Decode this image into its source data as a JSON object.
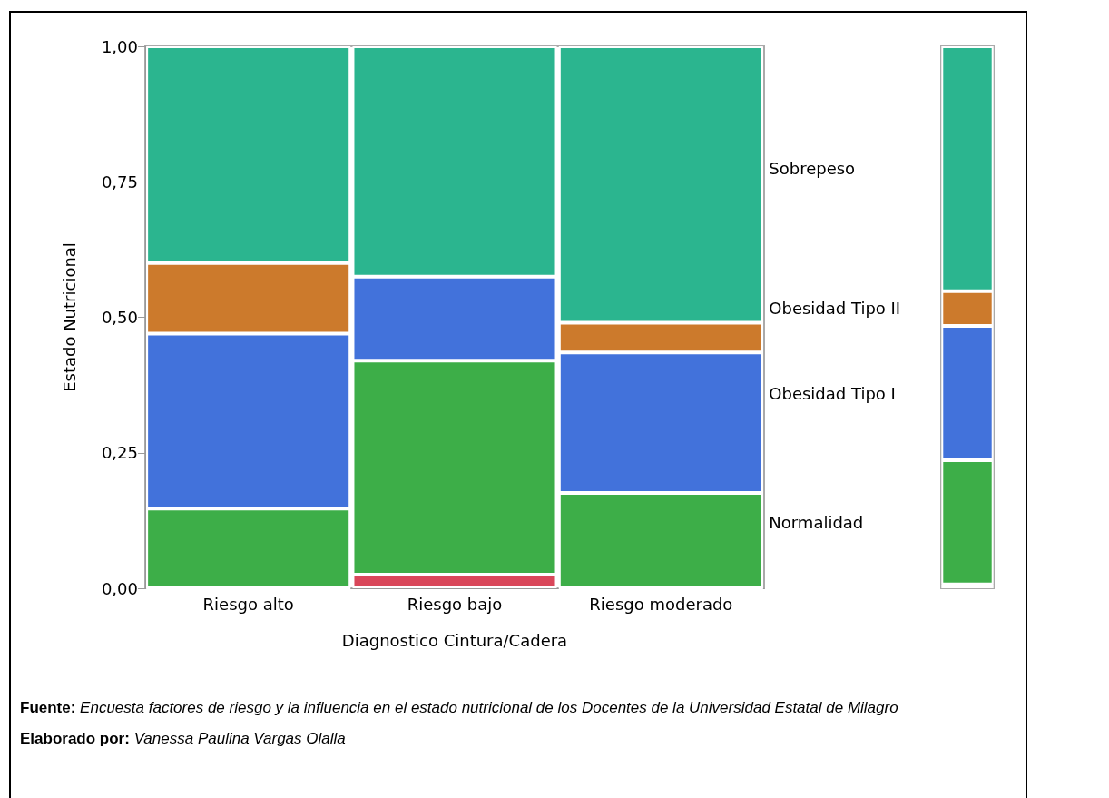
{
  "chart_data": {
    "type": "bar",
    "stacked": true,
    "xlabel": "Diagnostico Cintura/Cadera",
    "ylabel": "Estado Nutricional",
    "categories": [
      "Riesgo alto",
      "Riesgo bajo",
      "Riesgo moderado",
      null
    ],
    "series": [
      {
        "color": "#d9475a",
        "values": [
          0,
          0.025,
          0,
          0.007
        ]
      },
      {
        "name": "Normalidad",
        "color": "#3dae48",
        "values": [
          0.147,
          0.395,
          0.176,
          0.229
        ]
      },
      {
        "name": "Obesidad Tipo I",
        "color": "#4272db",
        "values": [
          0.323,
          0.155,
          0.259,
          0.248
        ]
      },
      {
        "name": "Obesidad Tipo II",
        "color": "#cc7a2c",
        "values": [
          0.13,
          0,
          0.055,
          0.064
        ]
      },
      {
        "name": "Sobrepeso",
        "color": "#2bb58f",
        "values": [
          0.4,
          0.425,
          0.51,
          0.452
        ]
      }
    ],
    "ylim": [
      0,
      1
    ],
    "yticks": [
      {
        "value": 0,
        "label": "0,00"
      },
      {
        "value": 0.25,
        "label": "0,25"
      },
      {
        "value": 0.5,
        "label": "0,50"
      },
      {
        "value": 0.75,
        "label": "0,75"
      },
      {
        "value": 1,
        "label": "1,00"
      }
    ],
    "grid": false,
    "legend": false,
    "annotations": [
      "Fuente: Encuesta factores de riesgo y la influencia en el estado nutricional de los Docentes de la Universidad Estatal de Milagro",
      "Elaborado por: Vanessa Paulina Vargas Olalla"
    ]
  }
}
